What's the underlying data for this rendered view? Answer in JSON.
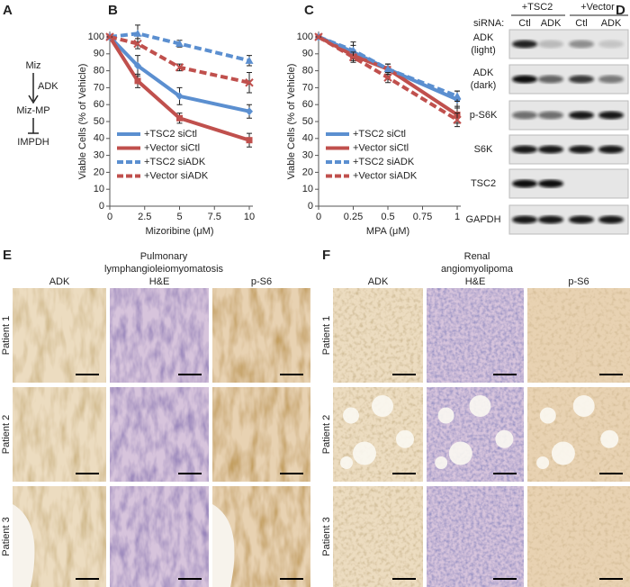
{
  "panel_labels": [
    "A",
    "B",
    "C",
    "D",
    "E",
    "F"
  ],
  "pathway": {
    "nodes": [
      "Miz",
      "Miz-MP",
      "IMPDH"
    ],
    "enzyme": "ADK"
  },
  "chart_data": [
    {
      "type": "line",
      "x": [
        0,
        2,
        5,
        10
      ],
      "xlim": [
        0,
        10
      ],
      "xticks": [
        0,
        2.5,
        5,
        7.5,
        10
      ],
      "ylim": [
        0,
        100
      ],
      "yticks": [
        0,
        10,
        20,
        30,
        40,
        50,
        60,
        70,
        80,
        90,
        100
      ],
      "xlabel": "Mizoribine (μM)",
      "ylabel": "Viable Cells (% of Vehicle)",
      "legend": "lower left",
      "series": [
        {
          "name": "+TSC2 siCtl",
          "color": "#5b8fd0",
          "linestyle": "solid",
          "marker": "diamond",
          "values": [
            100,
            83,
            65,
            56
          ],
          "errors": [
            0,
            6,
            5,
            4
          ]
        },
        {
          "name": "+Vector siCtl",
          "color": "#c0504d",
          "linestyle": "solid",
          "marker": "square",
          "values": [
            100,
            74,
            52,
            39
          ],
          "errors": [
            0,
            4,
            3,
            4
          ]
        },
        {
          "name": "+TSC2 siADK",
          "color": "#5b8fd0",
          "linestyle": "dashed",
          "marker": "triangle",
          "values": [
            100,
            102,
            96,
            86
          ],
          "errors": [
            0,
            5,
            2,
            3
          ]
        },
        {
          "name": "+Vector siADK",
          "color": "#c0504d",
          "linestyle": "dashed",
          "marker": "x",
          "values": [
            100,
            96,
            82,
            73
          ],
          "errors": [
            0,
            3,
            2,
            6
          ]
        }
      ]
    },
    {
      "type": "line",
      "x": [
        0,
        0.25,
        0.5,
        1
      ],
      "xlim": [
        0,
        1
      ],
      "xticks": [
        0,
        0.25,
        0.5,
        0.75,
        1
      ],
      "ylim": [
        0,
        100
      ],
      "yticks": [
        0,
        10,
        20,
        30,
        40,
        50,
        60,
        70,
        80,
        90,
        100
      ],
      "xlabel": "MPA (μM)",
      "ylabel": "Viable Cells (% of Vehicle)",
      "legend": "lower left",
      "series": [
        {
          "name": "+TSC2 siCtl",
          "color": "#5b8fd0",
          "linestyle": "solid",
          "marker": "diamond",
          "values": [
            100,
            91,
            81,
            63
          ],
          "errors": [
            0,
            4,
            3,
            5
          ]
        },
        {
          "name": "+Vector siCtl",
          "color": "#c0504d",
          "linestyle": "solid",
          "marker": "square",
          "values": [
            100,
            89,
            81,
            54
          ],
          "errors": [
            0,
            3,
            3,
            5
          ]
        },
        {
          "name": "+TSC2 siADK",
          "color": "#5b8fd0",
          "linestyle": "dashed",
          "marker": "triangle",
          "values": [
            100,
            92,
            81,
            65
          ],
          "errors": [
            0,
            5,
            3,
            3
          ]
        },
        {
          "name": "+Vector siADK",
          "color": "#c0504d",
          "linestyle": "dashed",
          "marker": "x",
          "values": [
            100,
            88,
            76,
            51
          ],
          "errors": [
            0,
            3,
            3,
            4
          ]
        }
      ]
    }
  ],
  "blot": {
    "groups": [
      "+TSC2",
      "+Vector"
    ],
    "siRNA_label": "siRNA:",
    "lanes": [
      "Ctl",
      "ADK",
      "Ctl",
      "ADK"
    ],
    "rows": [
      [
        "ADK",
        "(light)"
      ],
      [
        "ADK",
        "(dark)"
      ],
      [
        "p-S6K"
      ],
      [
        "S6K"
      ],
      [
        "TSC2"
      ],
      [
        "GAPDH"
      ]
    ]
  },
  "histology": [
    {
      "title": [
        "Pulmonary",
        "lymphangioleiomyomatosis"
      ],
      "columns": [
        "ADK",
        "H&E",
        "p-S6"
      ],
      "rows": [
        "Patient 1",
        "Patient 2",
        "Patient 3"
      ]
    },
    {
      "title": [
        "Renal",
        "angiomyolipoma"
      ],
      "columns": [
        "ADK",
        "H&E",
        "p-S6"
      ],
      "rows": [
        "Patient 1",
        "Patient 2",
        "Patient 3"
      ]
    }
  ]
}
